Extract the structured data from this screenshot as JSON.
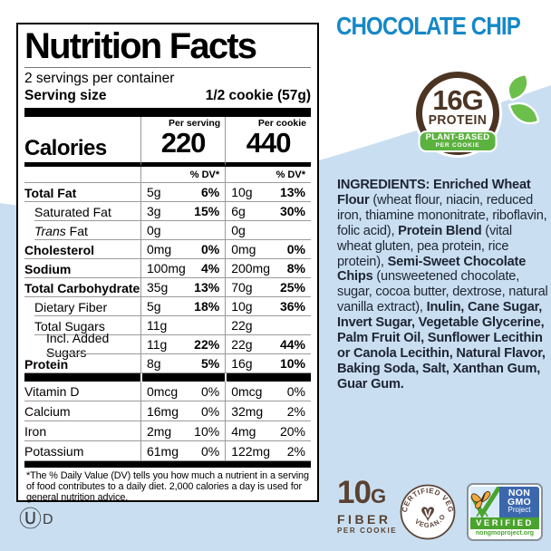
{
  "colors": {
    "background_blue": "#c9dff1",
    "brand_blue": "#1588c8",
    "badge_brown": "#4c3423",
    "badge_green": "#5cb23f",
    "nongmo_blue": "#3b68ad",
    "nongmo_green": "#4aa32d",
    "butterfly_orange": "#f2a73d"
  },
  "product": {
    "flavor_title": "CHOCOLATE CHIP"
  },
  "nutrition_panel": {
    "title": "Nutrition Facts",
    "servings_per_container": "2 servings per container",
    "serving_size_label": "Serving size",
    "serving_size_value": "1/2 cookie (57g)",
    "calories_label": "Calories",
    "per_serving_header": "Per serving",
    "per_cookie_header": "Per cookie",
    "calories_per_serving": "220",
    "calories_per_cookie": "440",
    "dv_header": "% DV*",
    "rows": [
      {
        "label": "Total Fat",
        "bold": true,
        "serving_amount": "5g",
        "serving_dv": "6%",
        "cookie_amount": "10g",
        "cookie_dv": "13%"
      },
      {
        "label": "Saturated Fat",
        "indent": 1,
        "serving_amount": "3g",
        "serving_dv": "15%",
        "cookie_amount": "6g",
        "cookie_dv": "30%"
      },
      {
        "label_italic": "Trans",
        "label": " Fat",
        "indent": 1,
        "serving_amount": "0g",
        "serving_dv": "",
        "cookie_amount": "0g",
        "cookie_dv": ""
      },
      {
        "label": "Cholesterol",
        "bold": true,
        "serving_amount": "0mg",
        "serving_dv": "0%",
        "cookie_amount": "0mg",
        "cookie_dv": "0%"
      },
      {
        "label": "Sodium",
        "bold": true,
        "serving_amount": "100mg",
        "serving_dv": "4%",
        "cookie_amount": "200mg",
        "cookie_dv": "8%"
      },
      {
        "label": "Total Carbohydrate",
        "bold": true,
        "serving_amount": "35g",
        "serving_dv": "13%",
        "cookie_amount": "70g",
        "cookie_dv": "25%"
      },
      {
        "label": "Dietary Fiber",
        "indent": 1,
        "serving_amount": "5g",
        "serving_dv": "18%",
        "cookie_amount": "10g",
        "cookie_dv": "36%"
      },
      {
        "label": "Total Sugars",
        "indent": 1,
        "serving_amount": "11g",
        "serving_dv": "",
        "cookie_amount": "22g",
        "cookie_dv": ""
      },
      {
        "label": "Incl. Added Sugars",
        "indent": 2,
        "serving_amount": "11g",
        "serving_dv": "22%",
        "cookie_amount": "22g",
        "cookie_dv": "44%"
      },
      {
        "label": "Protein",
        "bold": true,
        "serving_amount": "8g",
        "serving_dv": "5%",
        "cookie_amount": "16g",
        "cookie_dv": "10%"
      }
    ],
    "vitamin_rows": [
      {
        "label": "Vitamin D",
        "serving_amount": "0mcg",
        "serving_dv": "0%",
        "cookie_amount": "0mcg",
        "cookie_dv": "0%"
      },
      {
        "label": "Calcium",
        "serving_amount": "16mg",
        "serving_dv": "0%",
        "cookie_amount": "32mg",
        "cookie_dv": "2%"
      },
      {
        "label": "Iron",
        "serving_amount": "2mg",
        "serving_dv": "10%",
        "cookie_amount": "4mg",
        "cookie_dv": "20%"
      },
      {
        "label": "Potassium",
        "serving_amount": "61mg",
        "serving_dv": "0%",
        "cookie_amount": "122mg",
        "cookie_dv": "2%"
      }
    ],
    "footnote": "*The % Daily Value (DV) tells you how much a nutrient in a serving of food contributes to a daily diet. 2,000 calories a day is used for general nutrition advice."
  },
  "protein_badge": {
    "amount": "16G",
    "label": "PROTEIN",
    "banner_line1": "PLANT-BASED",
    "banner_line2": "PER COOKIE"
  },
  "ingredients": {
    "segments": [
      {
        "t": "INGREDIENTS: Enriched Wheat Flour",
        "b": true
      },
      {
        "t": " (wheat flour, niacin, reduced iron, thiamine mononitrate, riboflavin, folic acid), ",
        "b": false
      },
      {
        "t": "Protein Blend",
        "b": true
      },
      {
        "t": " (vital wheat gluten, pea protein, rice protein), ",
        "b": false
      },
      {
        "t": "Semi-Sweet Chocolate Chips",
        "b": true
      },
      {
        "t": " (unsweetened chocolate, sugar, cocoa butter, dextrose, natural vanilla extract), ",
        "b": false
      },
      {
        "t": "Inulin, Cane Sugar, Invert Sugar, Vegetable Glycerine, Palm Fruit Oil, Sunflower Lecithin or Canola Lecithin, Natural Flavor, Baking Soda, Salt, Xanthan Gum, Guar Gum.",
        "b": true
      }
    ]
  },
  "fiber_badge": {
    "amount": "10",
    "unit": "G",
    "label": "FIBER",
    "sublabel": "PER COOKIE"
  },
  "vegan_seal": {
    "top_text": "CERTIFIED VEGAN",
    "bottom_text": "VEGAN.ORG",
    "heart_letter": "V"
  },
  "non_gmo_seal": {
    "word1": "NON",
    "word2": "GMO",
    "word3": "Project",
    "verified": "VERIFIED",
    "url": "nongmoproject.org"
  },
  "kosher_mark": {
    "symbol": "Ⓤ",
    "letter": "D"
  }
}
